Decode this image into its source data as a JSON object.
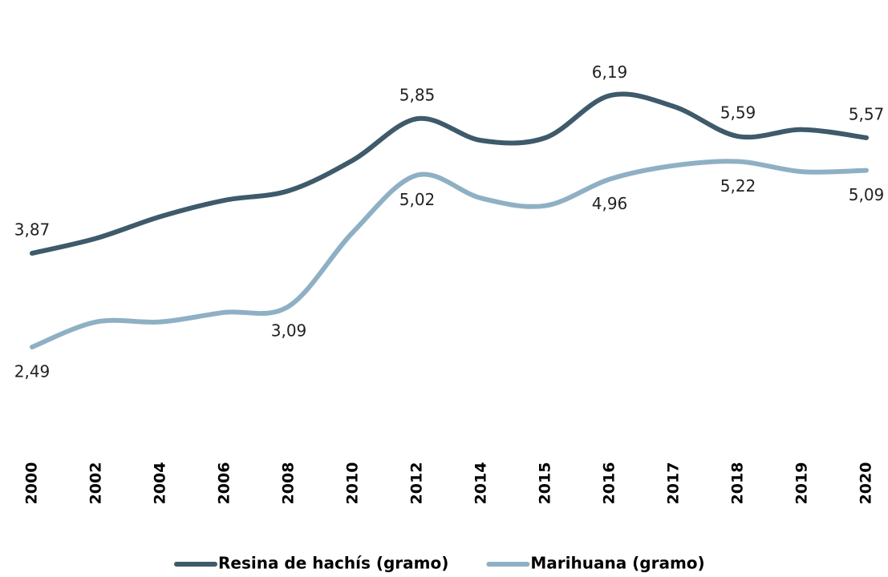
{
  "chart_data": {
    "type": "line",
    "categories": [
      "2000",
      "2002",
      "2004",
      "2006",
      "2008",
      "2010",
      "2012",
      "2014",
      "2015",
      "2016",
      "2017",
      "2018",
      "2019",
      "2020"
    ],
    "series": [
      {
        "name": "Resina de hachís (gramo)",
        "color": "#3e5a6b",
        "values": [
          3.87,
          4.09,
          4.41,
          4.65,
          4.79,
          5.24,
          5.85,
          5.53,
          5.57,
          6.19,
          6.03,
          5.59,
          5.69,
          5.57
        ],
        "value_labels": [
          "3,87",
          null,
          null,
          null,
          null,
          null,
          "5,85",
          null,
          null,
          "6,19",
          null,
          "5,59",
          null,
          "5,57"
        ]
      },
      {
        "name": "Marihuana (gramo)",
        "color": "#8fb0c4",
        "values": [
          2.49,
          2.86,
          2.86,
          3.0,
          3.09,
          4.18,
          5.02,
          4.68,
          4.57,
          4.96,
          5.16,
          5.22,
          5.07,
          5.09
        ],
        "value_labels": [
          "2,49",
          null,
          null,
          null,
          "3,09",
          null,
          "5,02",
          null,
          null,
          "4,96",
          null,
          "5,22",
          null,
          "5,09"
        ]
      }
    ],
    "ylim": [
      1.5,
      7
    ],
    "grid": false,
    "legend": "bottom"
  }
}
